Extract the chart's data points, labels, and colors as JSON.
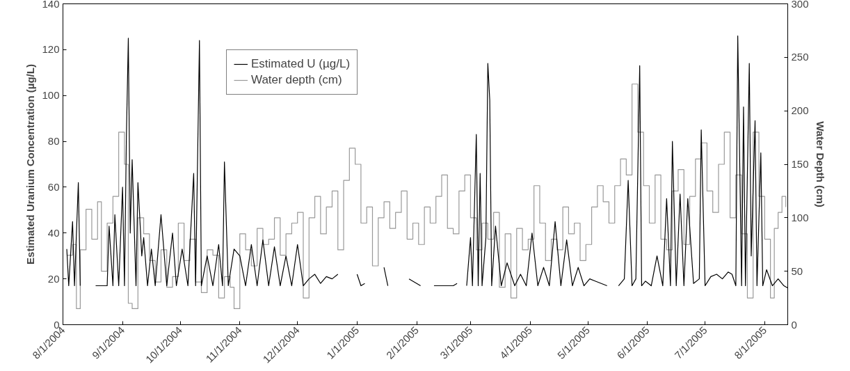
{
  "chart_data": {
    "type": "line",
    "ylabel": "Estimated Uranium Concentration (µg/L)",
    "y2label": "Water Depth (cm)",
    "xlim": [
      "2004-08-01",
      "2005-08-13"
    ],
    "xticks": [
      {
        "value": "2004-08-01",
        "label": "8/1/2004"
      },
      {
        "value": "2004-09-01",
        "label": "9/1/2004"
      },
      {
        "value": "2004-10-01",
        "label": "10/1/2004"
      },
      {
        "value": "2004-11-01",
        "label": "11/1/2004"
      },
      {
        "value": "2004-12-01",
        "label": "12/1/2004"
      },
      {
        "value": "2005-01-01",
        "label": "1/1/2005"
      },
      {
        "value": "2005-02-01",
        "label": "2/1/2005"
      },
      {
        "value": "2005-03-01",
        "label": "3/1/2005"
      },
      {
        "value": "2005-04-01",
        "label": "4/1/2005"
      },
      {
        "value": "2005-05-01",
        "label": "5/1/2005"
      },
      {
        "value": "2005-06-01",
        "label": "6/1/2005"
      },
      {
        "value": "2005-07-01",
        "label": "7/1/2005"
      },
      {
        "value": "2005-08-01",
        "label": "8/1/2005"
      }
    ],
    "ylim": [
      0,
      140
    ],
    "yticks": [
      0,
      20,
      40,
      60,
      80,
      100,
      120,
      140
    ],
    "y2lim": [
      0,
      300
    ],
    "y2ticks": [
      0,
      50,
      100,
      150,
      200,
      250,
      300
    ],
    "legend": "top",
    "grid": false,
    "series": [
      {
        "name": "Estimated U (µg/L)",
        "color": "#000000",
        "x": [
          "2004-08-03",
          "2004-08-04",
          "2004-08-06",
          "2004-08-07",
          "2004-08-09",
          "2004-08-10",
          "2004-08-12",
          "2004-08-18",
          "2004-08-24",
          "2004-08-25",
          "2004-08-27",
          "2004-08-28",
          "2004-08-30",
          "2004-09-01",
          "2004-09-02",
          "2004-09-03",
          "2004-09-04",
          "2004-09-05",
          "2004-09-06",
          "2004-09-08",
          "2004-09-09",
          "2004-09-11",
          "2004-09-12",
          "2004-09-14",
          "2004-09-16",
          "2004-09-18",
          "2004-09-21",
          "2004-09-24",
          "2004-09-27",
          "2004-09-29",
          "2004-10-02",
          "2004-10-05",
          "2004-10-08",
          "2004-10-09",
          "2004-10-11",
          "2004-10-12",
          "2004-10-15",
          "2004-10-18",
          "2004-10-21",
          "2004-10-23",
          "2004-10-24",
          "2004-10-26",
          "2004-10-29",
          "2004-11-01",
          "2004-11-04",
          "2004-11-07",
          "2004-11-10",
          "2004-11-13",
          "2004-11-16",
          "2004-11-19",
          "2004-11-22",
          "2004-11-25",
          "2004-11-28",
          "2004-12-01",
          "2004-12-04",
          "2004-12-07",
          "2004-12-10",
          "2004-12-13",
          "2004-12-16",
          "2004-12-19",
          "2004-12-22",
          "2004-12-25",
          "2005-01-01",
          "2005-01-03",
          "2005-01-05",
          "2005-01-08",
          "2005-01-15",
          "2005-01-17",
          "2005-01-25",
          "2005-01-28",
          "2005-02-03",
          "2005-02-05",
          "2005-02-10",
          "2005-02-13",
          "2005-02-20",
          "2005-02-22",
          "2005-02-25",
          "2005-02-27",
          "2005-03-01",
          "2005-03-02",
          "2005-03-04",
          "2005-03-05",
          "2005-03-06",
          "2005-03-07",
          "2005-03-09",
          "2005-03-10",
          "2005-03-11",
          "2005-03-12",
          "2005-03-14",
          "2005-03-17",
          "2005-03-20",
          "2005-03-24",
          "2005-03-27",
          "2005-03-30",
          "2005-04-02",
          "2005-04-05",
          "2005-04-08",
          "2005-04-11",
          "2005-04-14",
          "2005-04-17",
          "2005-04-20",
          "2005-04-23",
          "2005-04-26",
          "2005-04-29",
          "2005-05-02",
          "2005-05-05",
          "2005-05-08",
          "2005-05-11",
          "2005-05-13",
          "2005-05-17",
          "2005-05-20",
          "2005-05-22",
          "2005-05-24",
          "2005-05-26",
          "2005-05-28",
          "2005-05-29",
          "2005-05-31",
          "2005-06-03",
          "2005-06-06",
          "2005-06-09",
          "2005-06-11",
          "2005-06-13",
          "2005-06-14",
          "2005-06-16",
          "2005-06-18",
          "2005-06-20",
          "2005-06-22",
          "2005-06-25",
          "2005-06-28",
          "2005-06-29",
          "2005-07-01",
          "2005-07-04",
          "2005-07-07",
          "2005-07-10",
          "2005-07-13",
          "2005-07-15",
          "2005-07-17",
          "2005-07-18",
          "2005-07-20",
          "2005-07-21",
          "2005-07-22",
          "2005-07-24",
          "2005-07-25",
          "2005-07-27",
          "2005-07-28",
          "2005-07-30",
          "2005-07-31",
          "2005-08-02",
          "2005-08-05",
          "2005-08-08",
          "2005-08-11",
          "2005-08-13"
        ],
        "values": [
          33,
          17,
          45,
          17,
          62,
          17,
          null,
          17,
          17,
          43,
          17,
          48,
          17,
          60,
          17,
          82,
          125,
          40,
          72,
          17,
          62,
          30,
          38,
          17,
          33,
          17,
          48,
          17,
          40,
          17,
          33,
          17,
          66,
          17,
          124,
          17,
          30,
          17,
          35,
          17,
          71,
          17,
          33,
          30,
          17,
          35,
          17,
          37,
          17,
          34,
          17,
          30,
          17,
          35,
          17,
          20,
          22,
          18,
          21,
          20,
          22,
          null,
          22,
          17,
          18,
          null,
          25,
          17,
          null,
          20,
          17,
          null,
          17,
          17,
          17,
          18,
          null,
          17,
          38,
          17,
          83,
          17,
          66,
          17,
          38,
          114,
          98,
          17,
          43,
          17,
          27,
          17,
          22,
          17,
          40,
          17,
          25,
          17,
          45,
          17,
          37,
          17,
          25,
          17,
          20,
          19,
          18,
          17,
          null,
          17,
          20,
          63,
          17,
          20,
          113,
          17,
          19,
          17,
          30,
          17,
          55,
          17,
          80,
          17,
          57,
          17,
          55,
          18,
          20,
          85,
          17,
          21,
          22,
          20,
          23,
          22,
          17,
          126,
          17,
          95,
          17,
          114,
          30,
          89,
          17,
          75,
          17,
          24,
          17,
          20,
          17,
          16
        ]
      },
      {
        "name": "Water depth (cm)",
        "color": "#999999",
        "type": "step",
        "axis": "y2",
        "x": [
          "2004-08-03",
          "2004-08-06",
          "2004-08-08",
          "2004-08-10",
          "2004-08-13",
          "2004-08-16",
          "2004-08-19",
          "2004-08-21",
          "2004-08-24",
          "2004-08-27",
          "2004-08-30",
          "2004-09-02",
          "2004-09-04",
          "2004-09-06",
          "2004-09-09",
          "2004-09-12",
          "2004-09-15",
          "2004-09-18",
          "2004-09-21",
          "2004-09-24",
          "2004-09-27",
          "2004-09-30",
          "2004-10-03",
          "2004-10-06",
          "2004-10-09",
          "2004-10-12",
          "2004-10-15",
          "2004-10-18",
          "2004-10-21",
          "2004-10-24",
          "2004-10-27",
          "2004-10-29",
          "2004-11-01",
          "2004-11-04",
          "2004-11-07",
          "2004-11-10",
          "2004-11-13",
          "2004-11-16",
          "2004-11-19",
          "2004-11-22",
          "2004-11-25",
          "2004-11-28",
          "2004-12-01",
          "2004-12-04",
          "2004-12-07",
          "2004-12-10",
          "2004-12-13",
          "2004-12-16",
          "2004-12-19",
          "2004-12-22",
          "2004-12-25",
          "2004-12-28",
          "2004-12-31",
          "2005-01-03",
          "2005-01-06",
          "2005-01-09",
          "2005-01-12",
          "2005-01-15",
          "2005-01-18",
          "2005-01-21",
          "2005-01-24",
          "2005-01-27",
          "2005-01-30",
          "2005-02-02",
          "2005-02-05",
          "2005-02-08",
          "2005-02-11",
          "2005-02-14",
          "2005-02-17",
          "2005-02-20",
          "2005-02-23",
          "2005-02-26",
          "2005-03-01",
          "2005-03-04",
          "2005-03-07",
          "2005-03-10",
          "2005-03-13",
          "2005-03-16",
          "2005-03-19",
          "2005-03-22",
          "2005-03-25",
          "2005-03-28",
          "2005-03-31",
          "2005-04-03",
          "2005-04-06",
          "2005-04-09",
          "2005-04-12",
          "2005-04-15",
          "2005-04-18",
          "2005-04-21",
          "2005-04-24",
          "2005-04-27",
          "2005-04-30",
          "2005-05-03",
          "2005-05-06",
          "2005-05-09",
          "2005-05-12",
          "2005-05-15",
          "2005-05-18",
          "2005-05-21",
          "2005-05-24",
          "2005-05-27",
          "2005-05-30",
          "2005-06-02",
          "2005-06-05",
          "2005-06-08",
          "2005-06-11",
          "2005-06-14",
          "2005-06-17",
          "2005-06-20",
          "2005-06-23",
          "2005-06-26",
          "2005-06-29",
          "2005-07-02",
          "2005-07-05",
          "2005-07-08",
          "2005-07-11",
          "2005-07-14",
          "2005-07-17",
          "2005-07-20",
          "2005-07-23",
          "2005-07-26",
          "2005-07-29",
          "2005-08-01",
          "2005-08-04",
          "2005-08-06",
          "2005-08-08",
          "2005-08-10",
          "2005-08-12"
        ],
        "values": [
          65,
          75,
          15,
          70,
          108,
          80,
          115,
          50,
          95,
          120,
          180,
          150,
          20,
          15,
          100,
          85,
          60,
          40,
          70,
          35,
          45,
          95,
          60,
          80,
          40,
          30,
          70,
          65,
          25,
          45,
          35,
          15,
          85,
          70,
          55,
          90,
          75,
          80,
          100,
          65,
          85,
          95,
          105,
          25,
          100,
          120,
          85,
          110,
          125,
          70,
          135,
          165,
          150,
          95,
          110,
          55,
          100,
          115,
          90,
          105,
          125,
          80,
          95,
          75,
          110,
          95,
          120,
          140,
          90,
          85,
          125,
          140,
          100,
          70,
          95,
          80,
          105,
          35,
          85,
          25,
          90,
          70,
          80,
          130,
          95,
          60,
          80,
          70,
          110,
          85,
          95,
          60,
          75,
          110,
          130,
          115,
          95,
          130,
          155,
          140,
          225,
          180,
          130,
          95,
          140,
          80,
          70,
          125,
          145,
          75,
          120,
          155,
          170,
          125,
          105,
          150,
          180,
          100,
          140,
          85,
          25,
          180,
          120,
          80,
          25,
          90,
          105,
          120,
          110
        ]
      }
    ]
  }
}
